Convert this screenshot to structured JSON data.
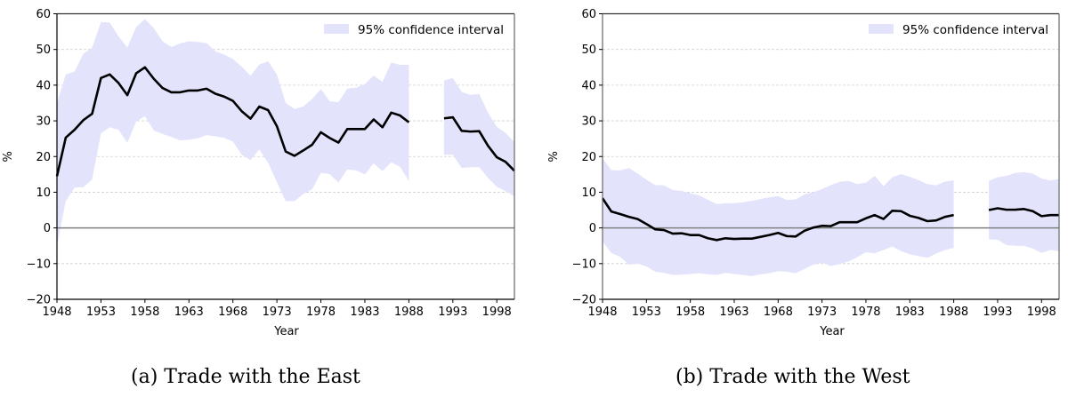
{
  "chart_data": [
    {
      "type": "line",
      "title": "",
      "caption": "(a) Trade with the East",
      "xlabel": "Year",
      "ylabel": "%",
      "xlim": [
        1948,
        2000
      ],
      "ylim": [
        -20,
        60
      ],
      "xticks": [
        1948,
        1953,
        1958,
        1963,
        1968,
        1973,
        1978,
        1983,
        1988,
        1993,
        1998
      ],
      "yticks": [
        -20,
        -10,
        0,
        10,
        20,
        30,
        40,
        50,
        60
      ],
      "grid": "horizontal-dashed",
      "zero_line": true,
      "legend": {
        "label": "95% confidence interval",
        "placement": "top-right"
      },
      "colors": {
        "line": "#000000",
        "band": "#e3e3fc",
        "zero": "#808080",
        "grid": "#d0d0d0"
      },
      "segments": [
        {
          "x": [
            1948,
            1949,
            1950,
            1951,
            1952,
            1953,
            1954,
            1955,
            1956,
            1957,
            1958,
            1959,
            1960,
            1961,
            1962,
            1963,
            1964,
            1965,
            1966,
            1967,
            1968,
            1969,
            1970,
            1971,
            1972,
            1973,
            1974,
            1975,
            1976,
            1977,
            1978,
            1979,
            1980,
            1981,
            1982,
            1983,
            1984,
            1985,
            1986,
            1987,
            1988
          ],
          "estimate": [
            14.5,
            25.3,
            27.5,
            30.2,
            32,
            42,
            43,
            40.6,
            37.2,
            43.3,
            45,
            41.8,
            39.2,
            38,
            38,
            38.5,
            38.5,
            39,
            37.6,
            36.8,
            35.6,
            32.7,
            30.6,
            34,
            33,
            28.5,
            21.4,
            20.2,
            21.7,
            23.3,
            26.8,
            25.2,
            23.9,
            27.7,
            27.7,
            27.7,
            30.4,
            28.2,
            32.3,
            31.5,
            29.6
          ],
          "upper": [
            35,
            43,
            43.8,
            48.8,
            50.5,
            57.7,
            57.5,
            53.7,
            50.5,
            56.3,
            58.5,
            56,
            52.3,
            50.7,
            51.7,
            52.3,
            52.1,
            51.8,
            49.5,
            48.6,
            47.3,
            45.2,
            42.6,
            45.8,
            46.7,
            43,
            35,
            33.3,
            34,
            36.1,
            38.9,
            35.5,
            35.2,
            39,
            39.3,
            40.3,
            42.7,
            40.9,
            46.3,
            45.7,
            45.7
          ],
          "lower": [
            -5,
            7.5,
            11.3,
            11.4,
            13.6,
            26.5,
            28.2,
            27.5,
            23.8,
            29.8,
            31.3,
            27.3,
            26.3,
            25.5,
            24.5,
            24.7,
            25.1,
            26,
            25.7,
            25.2,
            24.2,
            20.5,
            19,
            22,
            18.3,
            12.8,
            7.5,
            7.5,
            9.5,
            10.8,
            15.4,
            15.1,
            12.7,
            16.4,
            16.1,
            15,
            18.1,
            15.9,
            18.4,
            17.1,
            13.2
          ]
        },
        {
          "x": [
            1992,
            1993,
            1994,
            1995,
            1996,
            1997,
            1998,
            1999,
            2000
          ],
          "estimate": [
            30.7,
            31,
            27.2,
            27,
            27.1,
            23,
            19.8,
            18.5,
            16
          ],
          "upper": [
            41.3,
            42,
            38.1,
            37.3,
            37.5,
            32.3,
            28.3,
            26.6,
            24
          ],
          "lower": [
            20.5,
            20.5,
            16.8,
            17,
            17,
            14,
            11.5,
            10.3,
            8.8
          ]
        }
      ]
    },
    {
      "type": "line",
      "title": "",
      "caption": "(b) Trade with the West",
      "xlabel": "Year",
      "ylabel": "%",
      "xlim": [
        1948,
        2000
      ],
      "ylim": [
        -20,
        60
      ],
      "xticks": [
        1948,
        1953,
        1958,
        1963,
        1968,
        1973,
        1978,
        1983,
        1988,
        1993,
        1998
      ],
      "yticks": [
        -20,
        -10,
        0,
        10,
        20,
        30,
        40,
        50,
        60
      ],
      "grid": "horizontal-dashed",
      "zero_line": true,
      "legend": {
        "label": "95% confidence interval",
        "placement": "top-right"
      },
      "colors": {
        "line": "#000000",
        "band": "#e3e3fc",
        "zero": "#808080",
        "grid": "#d0d0d0"
      },
      "segments": [
        {
          "x": [
            1948,
            1949,
            1950,
            1951,
            1952,
            1953,
            1954,
            1955,
            1956,
            1957,
            1958,
            1959,
            1960,
            1961,
            1962,
            1963,
            1964,
            1965,
            1966,
            1967,
            1968,
            1969,
            1970,
            1971,
            1972,
            1973,
            1974,
            1975,
            1976,
            1977,
            1978,
            1979,
            1980,
            1981,
            1982,
            1983,
            1984,
            1985,
            1986,
            1987,
            1988
          ],
          "estimate": [
            8.3,
            4.6,
            3.9,
            3.1,
            2.5,
            1.1,
            -0.4,
            -0.6,
            -1.6,
            -1.5,
            -2,
            -2,
            -2.9,
            -3.4,
            -2.9,
            -3.1,
            -3,
            -3,
            -2.5,
            -2,
            -1.4,
            -2.3,
            -2.4,
            -0.8,
            0.1,
            0.6,
            0.5,
            1.6,
            1.6,
            1.6,
            2.7,
            3.6,
            2.5,
            4.8,
            4.7,
            3.4,
            2.8,
            1.9,
            2.1,
            3.1,
            3.6
          ],
          "upper": [
            19.5,
            16.2,
            16.1,
            16.8,
            15.2,
            13.5,
            12,
            11.9,
            10.6,
            10.4,
            9.7,
            9.1,
            7.9,
            6.7,
            6.9,
            6.9,
            7.2,
            7.6,
            8.1,
            8.6,
            8.9,
            7.8,
            8,
            9.4,
            10,
            10.9,
            12,
            12.9,
            13.2,
            12.3,
            12.7,
            14.6,
            11.7,
            14.2,
            15.1,
            14.3,
            13.4,
            12.3,
            11.9,
            13,
            13.3
          ],
          "lower": [
            -3.8,
            -7,
            -8.1,
            -10.3,
            -10,
            -10.8,
            -12.3,
            -12.6,
            -13.2,
            -13.1,
            -12.9,
            -12.7,
            -13,
            -13.2,
            -12.6,
            -12.9,
            -13.2,
            -13.5,
            -13,
            -12.7,
            -12.1,
            -12.3,
            -12.7,
            -11.5,
            -10.3,
            -9.7,
            -10.7,
            -10.1,
            -9.4,
            -8.2,
            -6.8,
            -7.1,
            -6.2,
            -5.2,
            -6.5,
            -7.4,
            -7.9,
            -8.4,
            -7.2,
            -6.2,
            -5.6
          ]
        },
        {
          "x": [
            1992,
            1993,
            1994,
            1995,
            1996,
            1997,
            1998,
            1999,
            2000
          ],
          "estimate": [
            5,
            5.5,
            5.1,
            5.1,
            5.3,
            4.7,
            3.3,
            3.6,
            3.6
          ],
          "upper": [
            13.2,
            14.2,
            14.6,
            15.4,
            15.6,
            15.2,
            13.8,
            13.3,
            13.7
          ],
          "lower": [
            -3.2,
            -3.3,
            -4.8,
            -5,
            -5,
            -5.8,
            -7,
            -6.2,
            -6.6
          ]
        }
      ]
    }
  ]
}
